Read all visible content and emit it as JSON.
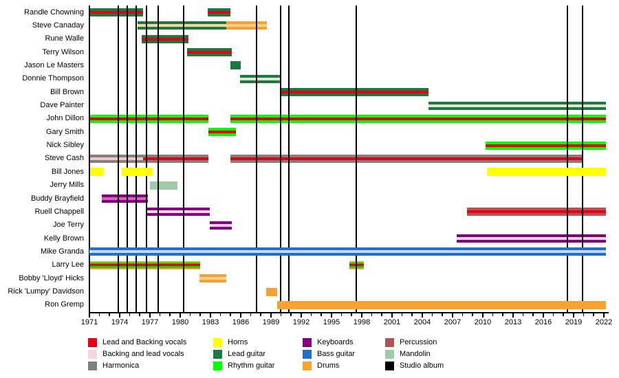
{
  "chart_data": {
    "type": "timeline",
    "description": "Band members timeline with instrument roles and studio album release markers",
    "x_axis": {
      "start_year": 1971,
      "end_year": 2022,
      "major_tick_years": [
        1971,
        1974,
        1977,
        1980,
        1983,
        1986,
        1989,
        1992,
        1995,
        1998,
        2001,
        2004,
        2007,
        2010,
        2013,
        2016,
        2019,
        2022
      ],
      "minor_tick_interval": 1
    },
    "album_years": [
      1973.85,
      1974.75,
      1975.66,
      1976.68,
      1977.82,
      1980.32,
      1987.59,
      1989.95,
      1990.77,
      1997.45,
      2018.38,
      2019.86
    ],
    "members": [
      {
        "name": "Randle Chowning",
        "segments": [
          {
            "start": 1971.0,
            "end": 1976.3,
            "layers": [
              "#1b7a42",
              "#e60012",
              "#1b7a42"
            ]
          },
          {
            "start": 1982.7,
            "end": 1985.0,
            "layers": [
              "#1b7a42",
              "#e60012",
              "#1b7a42"
            ]
          }
        ]
      },
      {
        "name": "Steve Canaday",
        "segments": [
          {
            "start": 1975.8,
            "end": 1984.6,
            "layers": [
              "#1b7a42",
              "#f9d49c",
              "#1b7a42"
            ]
          },
          {
            "start": 1984.6,
            "end": 1988.6,
            "layers": [
              "#f6a233",
              "#fccf8f",
              "#f6a233"
            ]
          }
        ]
      },
      {
        "name": "Rune Walle",
        "segments": [
          {
            "start": 1976.2,
            "end": 1980.8,
            "layers": [
              "#1b7a42",
              "#e60012",
              "#1b7a42"
            ]
          }
        ]
      },
      {
        "name": "Terry Wilson",
        "segments": [
          {
            "start": 1980.7,
            "end": 1985.1,
            "layers": [
              "#1b7a42",
              "#e60012",
              "#1b7a42"
            ]
          }
        ]
      },
      {
        "name": "Jason Le Masters",
        "segments": [
          {
            "start": 1985.0,
            "end": 1986.0,
            "layers": [
              "#1b7a42"
            ]
          }
        ]
      },
      {
        "name": "Donnie Thompson",
        "segments": [
          {
            "start": 1985.9,
            "end": 1989.9,
            "layers": [
              "#1b7a42",
              "#e3e3cf",
              "#1b7a42"
            ]
          }
        ]
      },
      {
        "name": "Bill Brown",
        "segments": [
          {
            "start": 1989.9,
            "end": 2004.6,
            "layers": [
              "#1b7a42",
              "#e60012",
              "#1b7a42"
            ]
          }
        ]
      },
      {
        "name": "Dave Painter",
        "segments": [
          {
            "start": 2004.6,
            "end": 2022.2,
            "layers": [
              "#1b7a42",
              "#e3e3cf",
              "#1b7a42"
            ]
          }
        ]
      },
      {
        "name": "John Dillon",
        "segments": [
          {
            "start": 1971.0,
            "end": 1982.8,
            "layers": [
              "#00ff00",
              "#e60012",
              "#00ff00"
            ]
          },
          {
            "start": 1985.0,
            "end": 2022.2,
            "layers": [
              "#00ff00",
              "#e60012",
              "#00ff00"
            ]
          }
        ]
      },
      {
        "name": "Gary Smith",
        "segments": [
          {
            "start": 1982.8,
            "end": 1985.5,
            "layers": [
              "#00ff00",
              "#e60012",
              "#00ff00"
            ]
          }
        ]
      },
      {
        "name": "Nick Sibley",
        "segments": [
          {
            "start": 2010.3,
            "end": 2022.2,
            "layers": [
              "#00ff00",
              "#e60012",
              "#00ff00"
            ]
          }
        ]
      },
      {
        "name": "Steve Cash",
        "segments": [
          {
            "start": 1971.0,
            "end": 1976.3,
            "layers": [
              "#808080",
              "#f4c6ca",
              "#808080"
            ]
          },
          {
            "start": 1976.3,
            "end": 1982.8,
            "layers": [
              "#808080",
              "#e60012",
              "#808080"
            ]
          },
          {
            "start": 1985.0,
            "end": 2019.9,
            "layers": [
              "#808080",
              "#e60012",
              "#808080"
            ]
          }
        ]
      },
      {
        "name": "Bill Jones",
        "segments": [
          {
            "start": 1971.1,
            "end": 1972.4,
            "layers": [
              "#ffff00"
            ],
            "above": true
          },
          {
            "start": 1974.2,
            "end": 1977.3,
            "layers": [
              "#ffff00"
            ],
            "above": true
          },
          {
            "start": 2010.4,
            "end": 2022.2,
            "layers": [
              "#ffff00"
            ],
            "above": true
          }
        ]
      },
      {
        "name": "Jerry Mills",
        "segments": [
          {
            "start": 1977.0,
            "end": 1979.7,
            "layers": [
              "#9fcbaa"
            ]
          }
        ]
      },
      {
        "name": "Buddy Brayfield",
        "segments": [
          {
            "start": 1972.2,
            "end": 1976.8,
            "layers": [
              "#800080",
              "#da5fb5",
              "#800080"
            ]
          }
        ]
      },
      {
        "name": "Ruell Chappell",
        "segments": [
          {
            "start": 1976.6,
            "end": 1982.9,
            "layers": [
              "#800080",
              "#fbd2e6",
              "#800080"
            ]
          },
          {
            "start": 2008.4,
            "end": 2022.2,
            "layers": [
              "#b25552",
              "#e60012",
              "#b25552"
            ]
          }
        ]
      },
      {
        "name": "Joe Terry",
        "segments": [
          {
            "start": 1982.9,
            "end": 1985.1,
            "layers": [
              "#800080",
              "#fbd2e6",
              "#800080"
            ]
          }
        ]
      },
      {
        "name": "Kelly Brown",
        "segments": [
          {
            "start": 2007.4,
            "end": 2022.2,
            "layers": [
              "#800080",
              "#fbd2e6",
              "#800080"
            ]
          }
        ]
      },
      {
        "name": "Mike Granda",
        "segments": [
          {
            "start": 1971.0,
            "end": 2022.2,
            "layers": [
              "#2070c8",
              "#ccd6f0",
              "#2070c8"
            ],
            "above": true
          }
        ]
      },
      {
        "name": "Larry Lee",
        "segments": [
          {
            "start": 1971.0,
            "end": 1982.0,
            "layers": [
              "#f6a233",
              "#00e000",
              "#e60012",
              "#00e000",
              "#f6a233"
            ],
            "weights": [
              1,
              1,
              1.3,
              1,
              1
            ]
          },
          {
            "start": 1996.8,
            "end": 1998.2,
            "layers": [
              "#f6a233",
              "#00e000",
              "#e60012",
              "#00e000",
              "#f6a233"
            ],
            "weights": [
              1,
              1,
              1.3,
              1,
              1
            ]
          }
        ]
      },
      {
        "name": "Bobby 'Lloyd' Hicks",
        "segments": [
          {
            "start": 1981.9,
            "end": 1984.6,
            "layers": [
              "#f6a233",
              "#fccf8f",
              "#f6a233"
            ]
          }
        ]
      },
      {
        "name": "Rick 'Lumpy' Davidson",
        "segments": [
          {
            "start": 1988.5,
            "end": 1989.6,
            "layers": [
              "#f6a233"
            ]
          }
        ]
      },
      {
        "name": "Ron Gremp",
        "segments": [
          {
            "start": 1989.6,
            "end": 2022.2,
            "layers": [
              "#f6a233"
            ],
            "above": true
          }
        ]
      }
    ],
    "legend_columns": [
      {
        "items": [
          {
            "label": "Lead and Backing vocals",
            "color": "#e60012"
          },
          {
            "label": "Backing and lead vocals",
            "color": "#f6d6d9"
          },
          {
            "label": "Harmonica",
            "color": "#808080"
          }
        ]
      },
      {
        "items": [
          {
            "label": "Horns",
            "color": "#ffff00"
          },
          {
            "label": "Lead guitar",
            "color": "#1b7a42"
          },
          {
            "label": "Rhythm guitar",
            "color": "#00ff00"
          }
        ]
      },
      {
        "items": [
          {
            "label": "Keyboards",
            "color": "#800080"
          },
          {
            "label": "Bass guitar",
            "color": "#2070c8"
          },
          {
            "label": "Drums",
            "color": "#f6a233"
          }
        ]
      },
      {
        "items": [
          {
            "label": "Percussion",
            "color": "#b25552"
          },
          {
            "label": "Mandolin",
            "color": "#9fcbaa"
          },
          {
            "label": "Studio album",
            "color": "#000000"
          }
        ]
      }
    ]
  }
}
